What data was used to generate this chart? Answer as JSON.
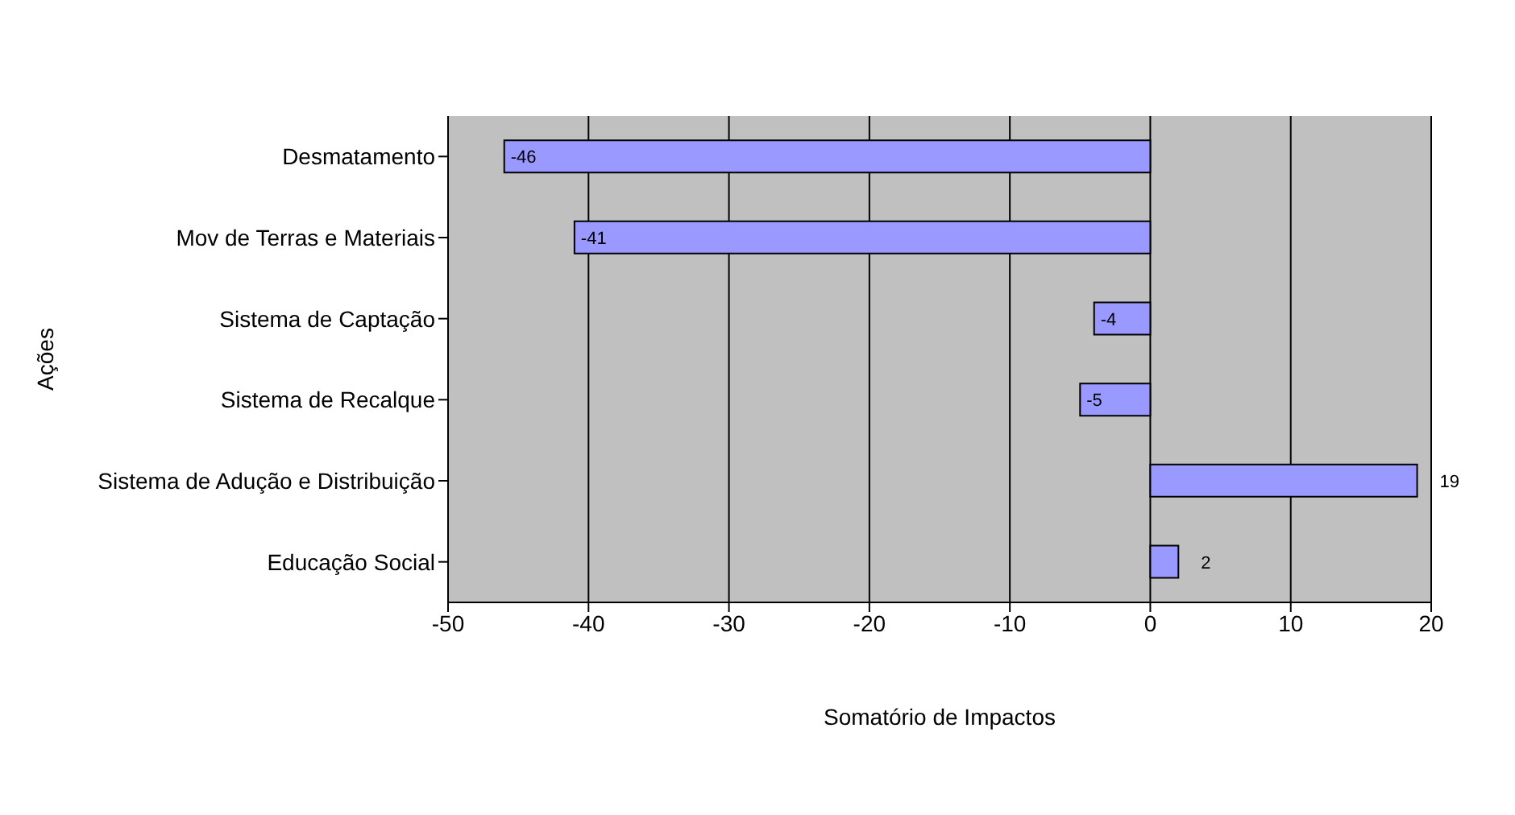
{
  "chart_data": {
    "type": "bar",
    "orientation": "horizontal",
    "xlabel": "Somatório de Impactos",
    "ylabel": "Ações",
    "categories": [
      "Desmatamento",
      "Mov de Terras e Materiais",
      "Sistema de Captação",
      "Sistema de Recalque",
      "Sistema de Adução e Distribuição",
      "Educação Social"
    ],
    "values": [
      -46,
      -41,
      -4,
      -5,
      19,
      2
    ],
    "color": "#9999ff",
    "xlim": [
      -50,
      20
    ],
    "xticks": [
      -50,
      -40,
      -30,
      -20,
      -10,
      0,
      10,
      20
    ],
    "grid": "x",
    "data_labels": true
  }
}
